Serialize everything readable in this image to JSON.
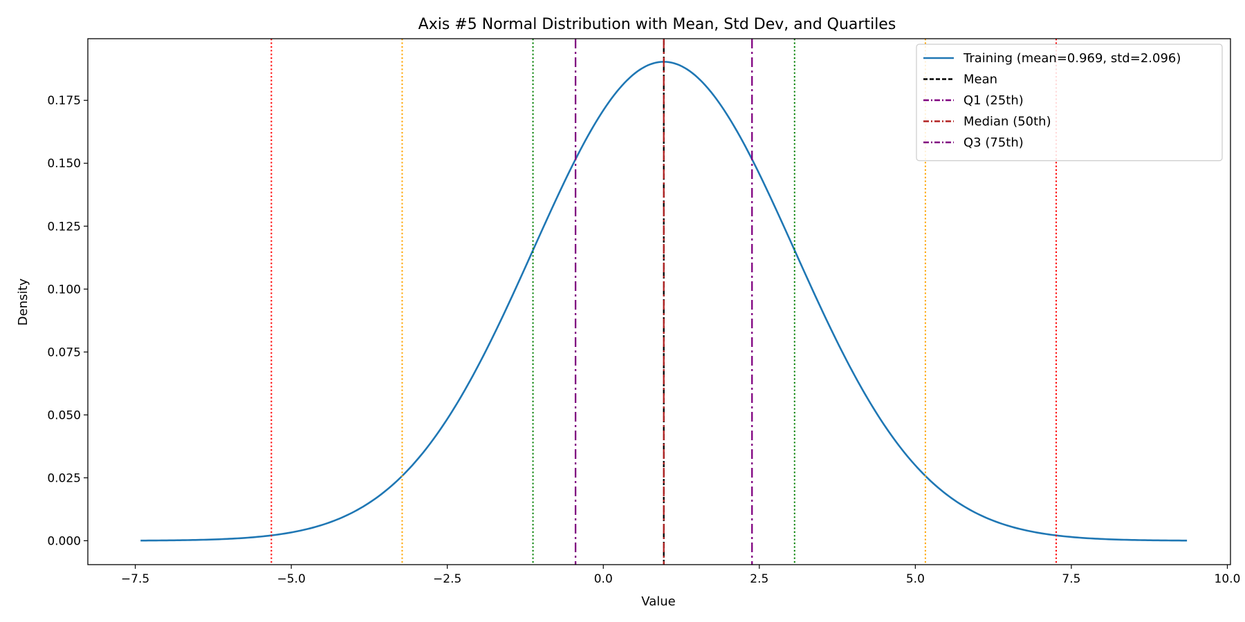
{
  "chart_data": {
    "type": "line",
    "title": "Axis #5 Normal Distribution with Mean, Std Dev, and Quartiles",
    "xlabel": "Value",
    "ylabel": "Density",
    "xlim": [
      -8.26,
      10.05
    ],
    "ylim": [
      -0.0095,
      0.1995
    ],
    "xticks": [
      -7.5,
      -5.0,
      -2.5,
      0.0,
      2.5,
      5.0,
      7.5,
      10.0
    ],
    "xtick_labels": [
      "−7.5",
      "−5.0",
      "−2.5",
      "0.0",
      "2.5",
      "5.0",
      "7.5",
      "10.0"
    ],
    "yticks": [
      0.0,
      0.025,
      0.05,
      0.075,
      0.1,
      0.125,
      0.15,
      0.175
    ],
    "ytick_labels": [
      "0.000",
      "0.025",
      "0.050",
      "0.075",
      "0.100",
      "0.125",
      "0.150",
      "0.175"
    ],
    "grid": false,
    "legend_position": "top-right",
    "series": [
      {
        "name": "Training (mean=0.969, std=2.096)",
        "color": "#1f77b4",
        "x_range": [
          -7.415,
          9.353
        ],
        "mean": 0.969,
        "std": 2.096
      }
    ],
    "reference_lines": [
      {
        "name": "Mean",
        "x": 0.969,
        "color": "#000000",
        "style": "dashed",
        "in_legend": true
      },
      {
        "name": "Q1 (25th)",
        "x": -0.445,
        "color": "#800080",
        "style": "dashdot",
        "in_legend": true
      },
      {
        "name": "Median (50th)",
        "x": 0.969,
        "color": "#b22222",
        "style": "dashdot",
        "in_legend": true
      },
      {
        "name": "Q3 (75th)",
        "x": 2.383,
        "color": "#800080",
        "style": "dashdot",
        "in_legend": true
      },
      {
        "name": "",
        "x": -1.127,
        "color": "#008000",
        "style": "dotted",
        "in_legend": false
      },
      {
        "name": "",
        "x": 3.065,
        "color": "#008000",
        "style": "dotted",
        "in_legend": false
      },
      {
        "name": "",
        "x": -3.223,
        "color": "#ffa500",
        "style": "dotted",
        "in_legend": false
      },
      {
        "name": "",
        "x": 5.161,
        "color": "#ffa500",
        "style": "dotted",
        "in_legend": false
      },
      {
        "name": "",
        "x": -5.319,
        "color": "#ff0000",
        "style": "dotted",
        "in_legend": false
      },
      {
        "name": "",
        "x": 7.257,
        "color": "#ff0000",
        "style": "dotted",
        "in_legend": false
      }
    ]
  }
}
